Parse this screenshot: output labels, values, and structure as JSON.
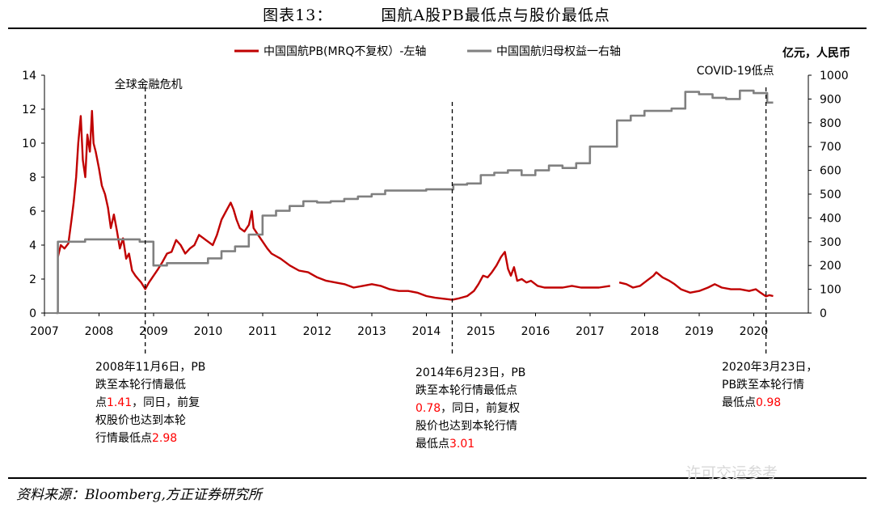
{
  "figure": {
    "label": "图表13：",
    "title": "国航A股PB最低点与股价最低点",
    "source": "资料来源：Bloomberg,方正证券研究所",
    "watermark": "许可交运参考"
  },
  "colors": {
    "pb": "#c00000",
    "equity": "#808080",
    "highlight": "#ff0000"
  },
  "chart_data": {
    "type": "line",
    "x_tick_labels": [
      "2007",
      "2008",
      "2009",
      "2010",
      "2011",
      "2012",
      "2013",
      "2014",
      "2015",
      "2016",
      "2017",
      "2018",
      "2019",
      "2020"
    ],
    "left_axis": {
      "range": [
        0,
        14
      ],
      "ticks": [
        "0",
        "2",
        "4",
        "6",
        "8",
        "10",
        "12",
        "14"
      ]
    },
    "right_axis": {
      "unit_label": "亿元，人民币",
      "range": [
        0,
        1000
      ],
      "ticks": [
        "0",
        "100",
        "200",
        "300",
        "400",
        "500",
        "600",
        "700",
        "800",
        "900",
        "1000"
      ]
    },
    "legend": {
      "placement": "top"
    },
    "series": [
      {
        "name": "中国国航PB(MRQ不复权）-左轴",
        "axis": "left",
        "color": "#c00000",
        "points": [
          [
            "2007-04-01",
            3.3
          ],
          [
            "2007-04-20",
            4.0
          ],
          [
            "2007-05-15",
            3.8
          ],
          [
            "2007-06-10",
            4.1
          ],
          [
            "2007-07-01",
            5.5
          ],
          [
            "2007-07-15",
            6.5
          ],
          [
            "2007-08-01",
            8.0
          ],
          [
            "2007-08-15",
            10.0
          ],
          [
            "2007-09-01",
            11.6
          ],
          [
            "2007-09-15",
            9.0
          ],
          [
            "2007-10-01",
            8.0
          ],
          [
            "2007-10-15",
            10.5
          ],
          [
            "2007-11-01",
            9.5
          ],
          [
            "2007-11-15",
            11.9
          ],
          [
            "2007-11-25",
            10.0
          ],
          [
            "2007-12-10",
            9.5
          ],
          [
            "2008-01-01",
            8.5
          ],
          [
            "2008-01-20",
            7.5
          ],
          [
            "2008-02-10",
            7.0
          ],
          [
            "2008-03-01",
            6.2
          ],
          [
            "2008-03-20",
            5.0
          ],
          [
            "2008-04-10",
            5.8
          ],
          [
            "2008-05-01",
            4.8
          ],
          [
            "2008-05-20",
            3.8
          ],
          [
            "2008-06-10",
            4.4
          ],
          [
            "2008-07-01",
            3.2
          ],
          [
            "2008-07-20",
            3.5
          ],
          [
            "2008-08-10",
            2.5
          ],
          [
            "2008-09-01",
            2.2
          ],
          [
            "2008-09-20",
            2.0
          ],
          [
            "2008-10-10",
            1.8
          ],
          [
            "2008-11-06",
            1.41
          ],
          [
            "2008-12-01",
            1.8
          ],
          [
            "2009-01-01",
            2.2
          ],
          [
            "2009-02-01",
            2.6
          ],
          [
            "2009-03-01",
            3.0
          ],
          [
            "2009-04-01",
            3.5
          ],
          [
            "2009-05-01",
            3.6
          ],
          [
            "2009-06-01",
            4.3
          ],
          [
            "2009-07-01",
            4.0
          ],
          [
            "2009-08-01",
            3.5
          ],
          [
            "2009-09-01",
            3.8
          ],
          [
            "2009-10-01",
            4.0
          ],
          [
            "2009-11-01",
            4.6
          ],
          [
            "2009-12-01",
            4.4
          ],
          [
            "2010-01-01",
            4.2
          ],
          [
            "2010-02-01",
            4.0
          ],
          [
            "2010-03-01",
            4.6
          ],
          [
            "2010-04-01",
            5.5
          ],
          [
            "2010-05-01",
            6.0
          ],
          [
            "2010-06-01",
            6.5
          ],
          [
            "2010-06-20",
            6.1
          ],
          [
            "2010-07-10",
            5.5
          ],
          [
            "2010-08-01",
            5.0
          ],
          [
            "2010-09-01",
            4.8
          ],
          [
            "2010-10-01",
            5.2
          ],
          [
            "2010-10-20",
            6.0
          ],
          [
            "2010-11-01",
            5.0
          ],
          [
            "2010-12-01",
            4.6
          ],
          [
            "2011-01-01",
            4.2
          ],
          [
            "2011-02-01",
            3.8
          ],
          [
            "2011-03-01",
            3.5
          ],
          [
            "2011-05-01",
            3.2
          ],
          [
            "2011-07-01",
            2.8
          ],
          [
            "2011-09-01",
            2.5
          ],
          [
            "2011-11-01",
            2.4
          ],
          [
            "2012-01-01",
            2.1
          ],
          [
            "2012-03-01",
            1.9
          ],
          [
            "2012-05-01",
            1.8
          ],
          [
            "2012-07-01",
            1.7
          ],
          [
            "2012-09-01",
            1.5
          ],
          [
            "2012-11-01",
            1.6
          ],
          [
            "2013-01-01",
            1.7
          ],
          [
            "2013-03-01",
            1.6
          ],
          [
            "2013-05-01",
            1.4
          ],
          [
            "2013-07-01",
            1.3
          ],
          [
            "2013-09-01",
            1.3
          ],
          [
            "2013-11-01",
            1.2
          ],
          [
            "2014-01-01",
            1.0
          ],
          [
            "2014-03-01",
            0.9
          ],
          [
            "2014-06-23",
            0.78
          ],
          [
            "2014-08-01",
            0.85
          ],
          [
            "2014-10-01",
            1.0
          ],
          [
            "2014-11-15",
            1.3
          ],
          [
            "2014-12-15",
            1.7
          ],
          [
            "2015-01-15",
            2.2
          ],
          [
            "2015-02-15",
            2.1
          ],
          [
            "2015-03-15",
            2.4
          ],
          [
            "2015-04-15",
            2.8
          ],
          [
            "2015-05-15",
            3.3
          ],
          [
            "2015-06-10",
            3.6
          ],
          [
            "2015-07-01",
            2.6
          ],
          [
            "2015-07-20",
            2.2
          ],
          [
            "2015-08-10",
            2.7
          ],
          [
            "2015-09-01",
            1.9
          ],
          [
            "2015-10-01",
            2.0
          ],
          [
            "2015-11-01",
            1.8
          ],
          [
            "2015-12-01",
            1.9
          ],
          [
            "2016-01-15",
            1.6
          ],
          [
            "2016-03-01",
            1.5
          ],
          [
            "2016-05-01",
            1.5
          ],
          [
            "2016-07-01",
            1.5
          ],
          [
            "2016-09-01",
            1.6
          ],
          [
            "2016-11-01",
            1.5
          ],
          [
            "2017-01-01",
            1.5
          ],
          [
            "2017-03-01",
            1.5
          ],
          [
            "2017-05-15",
            1.6
          ],
          null,
          [
            "2017-07-15",
            1.8
          ],
          [
            "2017-09-01",
            1.7
          ],
          [
            "2017-10-15",
            1.5
          ],
          [
            "2017-12-01",
            1.6
          ],
          [
            "2018-01-15",
            1.9
          ],
          [
            "2018-03-01",
            2.2
          ],
          [
            "2018-03-20",
            2.4
          ],
          [
            "2018-05-01",
            2.1
          ],
          [
            "2018-06-15",
            1.9
          ],
          [
            "2018-07-20",
            1.7
          ],
          [
            "2018-09-01",
            1.4
          ],
          [
            "2018-11-01",
            1.2
          ],
          [
            "2019-01-01",
            1.3
          ],
          [
            "2019-03-01",
            1.5
          ],
          [
            "2019-04-15",
            1.7
          ],
          [
            "2019-06-01",
            1.5
          ],
          [
            "2019-08-01",
            1.4
          ],
          [
            "2019-10-01",
            1.4
          ],
          [
            "2019-12-01",
            1.3
          ],
          [
            "2020-01-15",
            1.4
          ],
          [
            "2020-02-15",
            1.2
          ],
          [
            "2020-03-23",
            0.98
          ],
          [
            "2020-04-15",
            1.05
          ],
          [
            "2020-05-10",
            1.0
          ]
        ]
      },
      {
        "name": "中国国航归母权益一右轴",
        "axis": "right",
        "color": "#808080",
        "points": [
          [
            "2007-03-20",
            0
          ],
          [
            "2007-04-01",
            0
          ],
          [
            "2007-04-01",
            300
          ],
          [
            "2007-09-30",
            300
          ],
          [
            "2007-09-30",
            310
          ],
          [
            "2008-09-30",
            310
          ],
          [
            "2008-09-30",
            300
          ],
          [
            "2008-12-31",
            300
          ],
          [
            "2008-12-31",
            200
          ],
          [
            "2009-03-31",
            200
          ],
          [
            "2009-03-31",
            210
          ],
          [
            "2009-12-31",
            210
          ],
          [
            "2009-12-31",
            230
          ],
          [
            "2010-03-31",
            230
          ],
          [
            "2010-03-31",
            260
          ],
          [
            "2010-06-30",
            260
          ],
          [
            "2010-06-30",
            280
          ],
          [
            "2010-09-30",
            280
          ],
          [
            "2010-09-30",
            330
          ],
          [
            "2010-12-31",
            330
          ],
          [
            "2010-12-31",
            410
          ],
          [
            "2011-03-31",
            410
          ],
          [
            "2011-03-31",
            430
          ],
          [
            "2011-06-30",
            430
          ],
          [
            "2011-06-30",
            450
          ],
          [
            "2011-09-30",
            450
          ],
          [
            "2011-09-30",
            470
          ],
          [
            "2011-12-31",
            470
          ],
          [
            "2011-12-31",
            465
          ],
          [
            "2012-03-31",
            465
          ],
          [
            "2012-03-31",
            470
          ],
          [
            "2012-06-30",
            470
          ],
          [
            "2012-06-30",
            480
          ],
          [
            "2012-09-30",
            480
          ],
          [
            "2012-09-30",
            490
          ],
          [
            "2012-12-31",
            490
          ],
          [
            "2012-12-31",
            500
          ],
          [
            "2013-03-31",
            500
          ],
          [
            "2013-03-31",
            515
          ],
          [
            "2013-12-31",
            515
          ],
          [
            "2013-12-31",
            520
          ],
          [
            "2014-06-30",
            520
          ],
          [
            "2014-06-30",
            540
          ],
          [
            "2014-09-30",
            540
          ],
          [
            "2014-09-30",
            545
          ],
          [
            "2014-12-31",
            545
          ],
          [
            "2014-12-31",
            580
          ],
          [
            "2015-03-31",
            580
          ],
          [
            "2015-03-31",
            590
          ],
          [
            "2015-06-30",
            590
          ],
          [
            "2015-06-30",
            600
          ],
          [
            "2015-09-30",
            600
          ],
          [
            "2015-09-30",
            580
          ],
          [
            "2015-12-31",
            580
          ],
          [
            "2015-12-31",
            600
          ],
          [
            "2016-03-31",
            600
          ],
          [
            "2016-03-31",
            620
          ],
          [
            "2016-06-30",
            620
          ],
          [
            "2016-06-30",
            610
          ],
          [
            "2016-09-30",
            610
          ],
          [
            "2016-09-30",
            630
          ],
          [
            "2016-12-31",
            630
          ],
          [
            "2016-12-31",
            700
          ],
          [
            "2017-06-30",
            700
          ],
          [
            "2017-06-30",
            810
          ],
          [
            "2017-09-30",
            810
          ],
          [
            "2017-09-30",
            830
          ],
          [
            "2017-12-31",
            830
          ],
          [
            "2017-12-31",
            850
          ],
          [
            "2018-06-30",
            850
          ],
          [
            "2018-06-30",
            860
          ],
          [
            "2018-09-30",
            860
          ],
          [
            "2018-09-30",
            930
          ],
          [
            "2018-12-31",
            930
          ],
          [
            "2018-12-31",
            920
          ],
          [
            "2019-03-31",
            920
          ],
          [
            "2019-03-31",
            905
          ],
          [
            "2019-06-30",
            905
          ],
          [
            "2019-06-30",
            900
          ],
          [
            "2019-09-30",
            900
          ],
          [
            "2019-09-30",
            935
          ],
          [
            "2019-12-31",
            935
          ],
          [
            "2019-12-31",
            925
          ],
          [
            "2020-03-31",
            925
          ],
          [
            "2020-03-31",
            885
          ],
          [
            "2020-05-10",
            885
          ]
        ]
      }
    ],
    "markers": [
      {
        "name": "gfc",
        "date": "2008-11-06",
        "label": "全球金融危机"
      },
      {
        "name": "pb-low-2014",
        "date": "2014-06-23",
        "label": ""
      },
      {
        "name": "covid",
        "date": "2020-03-23",
        "label": "COVID-19低点"
      }
    ],
    "annotations": [
      {
        "name": "note-2008",
        "lines": [
          [
            {
              "t": "2008年11月6日，PB"
            }
          ],
          [
            {
              "t": "跌至本轮行情最低"
            }
          ],
          [
            {
              "t": "点"
            },
            {
              "t": "1.41",
              "h": true
            },
            {
              "t": "，同日，前复"
            }
          ],
          [
            {
              "t": "权股价也达到本轮"
            }
          ],
          [
            {
              "t": "行情最低点"
            },
            {
              "t": "2.98",
              "h": true
            }
          ]
        ]
      },
      {
        "name": "note-2014",
        "lines": [
          [
            {
              "t": "2014年6月23日，PB"
            }
          ],
          [
            {
              "t": "跌至本轮行情最低点"
            }
          ],
          [
            {
              "t": "0.78",
              "h": true
            },
            {
              "t": "，同日，前复权"
            }
          ],
          [
            {
              "t": "股价也达到本轮行情"
            }
          ],
          [
            {
              "t": "最低点"
            },
            {
              "t": "3.01",
              "h": true
            }
          ]
        ]
      },
      {
        "name": "note-2020",
        "lines": [
          [
            {
              "t": "2020年3月23日，"
            }
          ],
          [
            {
              "t": "PB跌至本轮行情"
            }
          ],
          [
            {
              "t": "最低点"
            },
            {
              "t": "0.98",
              "h": true
            }
          ]
        ]
      }
    ]
  }
}
